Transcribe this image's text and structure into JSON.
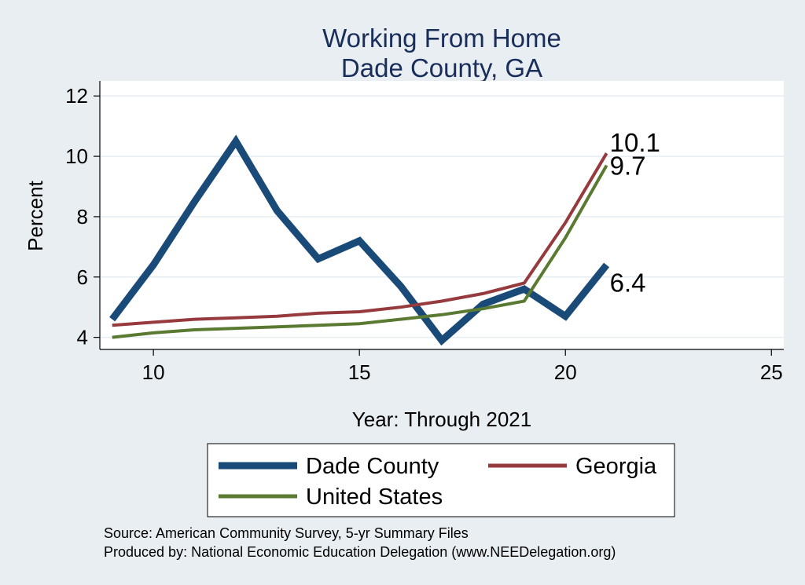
{
  "chart_data": {
    "type": "line",
    "title": [
      "Working From Home",
      "Dade County, GA"
    ],
    "xlabel": "Year: Through 2021",
    "ylabel": "Percent",
    "xlim": [
      8.7,
      25.3
    ],
    "ylim": [
      3.6,
      12.5
    ],
    "xticks": [
      10,
      15,
      20,
      25
    ],
    "yticks": [
      4,
      6,
      8,
      10,
      12
    ],
    "grid": true,
    "legend_position": "bottom",
    "series": [
      {
        "name": "Dade County",
        "color": "#1a4a78",
        "width": 9,
        "x": [
          9,
          10,
          11,
          12,
          13,
          14,
          15,
          16,
          17,
          18,
          19,
          20,
          21
        ],
        "y": [
          4.6,
          6.4,
          8.5,
          10.5,
          8.2,
          6.6,
          7.2,
          5.7,
          3.9,
          5.1,
          5.6,
          4.7,
          6.4
        ],
        "end_label": "6.4"
      },
      {
        "name": "Georgia",
        "color": "#963a3e",
        "width": 4,
        "x": [
          9,
          10,
          11,
          12,
          13,
          14,
          15,
          16,
          17,
          18,
          19,
          20,
          21
        ],
        "y": [
          4.4,
          4.5,
          4.6,
          4.65,
          4.7,
          4.8,
          4.85,
          5.0,
          5.2,
          5.45,
          5.8,
          7.8,
          10.1
        ],
        "end_label": "10.1"
      },
      {
        "name": "United States",
        "color": "#5a7a32",
        "width": 4,
        "x": [
          9,
          10,
          11,
          12,
          13,
          14,
          15,
          16,
          17,
          18,
          19,
          20,
          21
        ],
        "y": [
          4.0,
          4.15,
          4.25,
          4.3,
          4.35,
          4.4,
          4.45,
          4.6,
          4.75,
          4.95,
          5.2,
          7.3,
          9.7
        ],
        "end_label": "9.7"
      }
    ],
    "notes": [
      "Source: American Community Survey, 5-yr Summary Files",
      "Produced by: National Economic Education Delegation (www.NEEDelegation.org)"
    ]
  }
}
